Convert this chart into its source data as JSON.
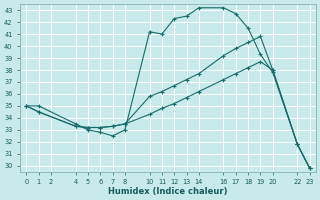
{
  "xlabel": "Humidex (Indice chaleur)",
  "bg_color": "#c8eaea",
  "grid_color": "#ffffff",
  "line_color": "#1a6b6b",
  "ylim": [
    29.5,
    43.5
  ],
  "xlim": [
    -0.5,
    23.5
  ],
  "yticks": [
    30,
    31,
    32,
    33,
    34,
    35,
    36,
    37,
    38,
    39,
    40,
    41,
    42,
    43
  ],
  "xticks": [
    0,
    1,
    2,
    4,
    5,
    6,
    7,
    8,
    10,
    11,
    12,
    13,
    14,
    16,
    17,
    18,
    19,
    20,
    22,
    23
  ],
  "xtick_labels": [
    "0",
    "1",
    "2",
    "4",
    "5",
    "6",
    "7",
    "8",
    "10",
    "11",
    "12",
    "13",
    "14",
    "16",
    "17",
    "18",
    "19",
    "20",
    "22",
    "23"
  ],
  "curve1_x": [
    0,
    1,
    4,
    5,
    6,
    7,
    8,
    10,
    11,
    12,
    13,
    14,
    16,
    17,
    18,
    19,
    20,
    22,
    23
  ],
  "curve1_y": [
    35.0,
    35.0,
    33.5,
    33.0,
    32.8,
    32.5,
    33.0,
    41.2,
    41.0,
    42.3,
    42.5,
    43.2,
    43.2,
    42.7,
    41.5,
    39.3,
    37.8,
    31.8,
    29.8
  ],
  "curve2_x": [
    0,
    1,
    4,
    5,
    6,
    7,
    8,
    10,
    11,
    12,
    13,
    14,
    16,
    17,
    18,
    19,
    20,
    22,
    23
  ],
  "curve2_y": [
    35.0,
    34.5,
    33.3,
    33.2,
    33.2,
    33.3,
    33.5,
    35.8,
    36.2,
    36.7,
    37.2,
    37.7,
    39.2,
    39.8,
    40.3,
    40.8,
    38.0,
    31.8,
    29.8
  ],
  "curve3_x": [
    0,
    1,
    4,
    5,
    6,
    7,
    8,
    10,
    11,
    12,
    13,
    14,
    16,
    17,
    18,
    19,
    20,
    22,
    23
  ],
  "curve3_y": [
    35.0,
    34.5,
    33.3,
    33.2,
    33.2,
    33.3,
    33.5,
    34.3,
    34.8,
    35.2,
    35.7,
    36.2,
    37.2,
    37.7,
    38.2,
    38.7,
    38.0,
    31.8,
    29.8
  ]
}
